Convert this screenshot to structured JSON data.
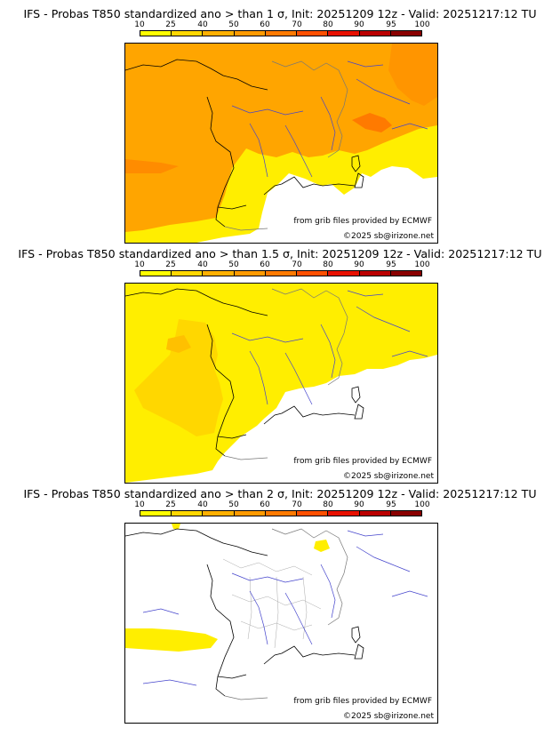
{
  "legend_ticks": [
    "10",
    "25",
    "40",
    "50",
    "60",
    "70",
    "80",
    "90",
    "95",
    "100"
  ],
  "legend_colors": [
    "#ffff00",
    "#ffd700",
    "#ffb000",
    "#ff9a00",
    "#ff7a00",
    "#ff5000",
    "#e81000",
    "#bb0000",
    "#8a0000",
    "#5a0000"
  ],
  "colors": {
    "ocean": "#ffffff",
    "coast": "#000000",
    "rivers": "#3333cc",
    "borders": "#808080",
    "prob_low": "#ffff00",
    "prob_mid": "#ffd700",
    "prob_high": "#ffa500",
    "prob_higher": "#ff8c00",
    "prob_max": "#ff4500"
  },
  "panels": [
    {
      "title": "IFS - Probas T850  standardized ano > than 1 σ, Init: 20251209 12z - Valid: 20251217:12 TU",
      "source": "from grib files provided by ECMWF",
      "copyright": "©2025 sb@irizone.net"
    },
    {
      "title": "IFS - Probas T850  standardized ano > than 1.5 σ, Init: 20251209 12z - Valid: 20251217:12 TU",
      "source": "from grib files provided by ECMWF",
      "copyright": "©2025 sb@irizone.net"
    },
    {
      "title": "IFS - Probas T850  standardized ano > than 2 σ, Init: 20251209 12z - Valid: 20251217:12 TU",
      "source": "from grib files provided by ECMWF",
      "copyright": "©2025 sb@irizone.net"
    }
  ]
}
